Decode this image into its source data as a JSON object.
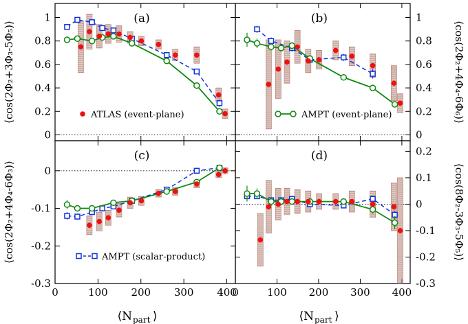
{
  "chart_data": [
    {
      "type": "scatter",
      "panel_label": "(a)",
      "ylabel": "⟨cos(2Φ₂+3Φ₃-5Φ₅)⟩",
      "xlabel": "⟨N_part⟩",
      "xlim": [
        0,
        420
      ],
      "ylim": [
        -0.05,
        1.12
      ],
      "yticks": [
        0,
        0.2,
        0.4,
        0.6,
        0.8,
        1
      ],
      "ytick_labels": [
        "0",
        "0.2",
        "0.4",
        "0.6",
        "0.8",
        "1"
      ],
      "legend": {
        "entry": "ATLAS (event-plane)",
        "marker": "filled-circle",
        "color": "#ee1111"
      },
      "series": [
        {
          "name": "ATLAS (event-plane)",
          "style": "atlas",
          "color": "#ee1111",
          "x": [
            60,
            80,
            103,
            124,
            149,
            175,
            201,
            241,
            280,
            330,
            381,
            396
          ],
          "y": [
            0.75,
            0.88,
            0.84,
            0.86,
            0.86,
            0.83,
            0.8,
            0.77,
            0.68,
            0.68,
            0.34,
            0.18
          ],
          "err": [
            0.22,
            0.15,
            0.1,
            0.08,
            0.07,
            0.05,
            0.04,
            0.04,
            0.05,
            0.07,
            0.06,
            0.04
          ]
        },
        {
          "name": "AMPT (scalar-product)",
          "style": "amptsp",
          "color": "#1133dd",
          "x": [
            28,
            52,
            86,
            110,
            136,
            179,
            260,
            330,
            383
          ],
          "y": [
            0.92,
            0.98,
            0.96,
            0.91,
            0.89,
            0.82,
            0.68,
            0.54,
            0.27
          ],
          "err": [
            0.02,
            0.02,
            0.02,
            0.02,
            0.02,
            0.02,
            0.02,
            0.02,
            0.03
          ]
        },
        {
          "name": "AMPT (event-plane)",
          "style": "amptep",
          "color": "#118811",
          "x": [
            28,
            52,
            86,
            110,
            136,
            179,
            260,
            330,
            383
          ],
          "y": [
            0.81,
            0.82,
            0.8,
            0.83,
            0.84,
            0.78,
            0.63,
            0.42,
            0.2
          ],
          "err": [
            0.02,
            0.02,
            0.02,
            0.02,
            0.02,
            0.02,
            0.02,
            0.02,
            0.02
          ]
        }
      ]
    },
    {
      "type": "scatter",
      "panel_label": "(b)",
      "ylabel": "⟨cos(2Φ₂+4Φ₄-6Φ₆)⟩",
      "xlabel": "⟨N_part⟩",
      "xlim": [
        0,
        420
      ],
      "ylim": [
        -0.05,
        1.12
      ],
      "yticks": [
        0,
        0.2,
        0.4,
        0.6,
        0.8,
        1
      ],
      "ytick_labels": [
        "0",
        "0.2",
        "0.4",
        "0.6",
        "0.8",
        "1"
      ],
      "legend": {
        "entry": "AMPT (event-plane)",
        "marker": "open-circle-line",
        "color": "#118811"
      },
      "series": [
        {
          "name": "ATLAS (event-plane)",
          "style": "atlas",
          "color": "#ee1111",
          "x": [
            80,
            103,
            124,
            149,
            175,
            201,
            241,
            280,
            330,
            381,
            396
          ],
          "y": [
            0.43,
            0.56,
            0.62,
            0.75,
            0.63,
            0.64,
            0.72,
            0.67,
            0.59,
            0.44,
            0.27
          ],
          "err": [
            0.38,
            0.25,
            0.18,
            0.14,
            0.1,
            0.08,
            0.08,
            0.08,
            0.1,
            0.15,
            0.08
          ]
        },
        {
          "name": "AMPT (scalar-product)",
          "style": "amptsp",
          "color": "#1133dd",
          "x": [
            52,
            86,
            136,
            179,
            260,
            330
          ],
          "y": [
            0.9,
            0.8,
            0.74,
            0.64,
            0.66,
            0.52
          ],
          "err": [
            0.03,
            0.03,
            0.03,
            0.03,
            0.03,
            0.04
          ]
        },
        {
          "name": "AMPT (event-plane)",
          "style": "amptep",
          "color": "#118811",
          "x": [
            28,
            52,
            86,
            110,
            136,
            179,
            260,
            330,
            383
          ],
          "y": [
            0.81,
            0.78,
            0.75,
            0.74,
            0.76,
            0.65,
            0.49,
            0.4,
            0.26
          ],
          "err": [
            0.06,
            0.04,
            0.03,
            0.03,
            0.03,
            0.02,
            0.02,
            0.02,
            0.02
          ]
        }
      ]
    },
    {
      "type": "scatter",
      "panel_label": "(c)",
      "ylabel": "⟨cos(2Φ₂+4Φ₄-6Φ₃)⟩",
      "xlabel": "⟨N_part⟩",
      "xlim": [
        0,
        420
      ],
      "ylim": [
        -0.3,
        0.08
      ],
      "yticks": [
        -0.3,
        -0.2,
        -0.1,
        0
      ],
      "ytick_labels": [
        "-0.3",
        "-0.2",
        "-0.1",
        "0"
      ],
      "legend": {
        "entry": "AMPT (scalar-product)",
        "marker": "open-square-dash",
        "color": "#1133dd"
      },
      "series": [
        {
          "name": "ATLAS (event-plane)",
          "style": "atlas",
          "color": "#ee1111",
          "x": [
            80,
            103,
            124,
            149,
            175,
            201,
            241,
            280,
            330,
            381,
            396
          ],
          "y": [
            -0.145,
            -0.135,
            -0.125,
            -0.105,
            -0.085,
            -0.08,
            -0.06,
            -0.055,
            -0.035,
            -0.01,
            0
          ],
          "err": [
            0.025,
            0.025,
            0.02,
            0.018,
            0.015,
            0.012,
            0.01,
            0.01,
            0.01,
            0.008,
            0.008
          ]
        },
        {
          "name": "AMPT (scalar-product)",
          "style": "amptsp",
          "color": "#1133dd",
          "x": [
            28,
            52,
            86,
            110,
            136,
            179,
            260,
            330,
            383
          ],
          "y": [
            -0.12,
            -0.122,
            -0.11,
            -0.1,
            -0.095,
            -0.08,
            -0.05,
            0,
            0.008
          ],
          "err": [
            0.01,
            0.008,
            0.008,
            0.008,
            0.007,
            0.006,
            0.006,
            0.006,
            0.006
          ]
        },
        {
          "name": "AMPT (event-plane)",
          "style": "amptep",
          "color": "#118811",
          "x": [
            28,
            52,
            86,
            136,
            179,
            260,
            330,
            383
          ],
          "y": [
            -0.09,
            -0.1,
            -0.1,
            -0.085,
            -0.08,
            -0.055,
            -0.03,
            0.008
          ],
          "err": [
            0.012,
            0.008,
            0.007,
            0.006,
            0.006,
            0.006,
            0.006,
            0.008
          ]
        }
      ]
    },
    {
      "type": "scatter",
      "panel_label": "(d)",
      "ylabel": "⟨cos(8Φ₂-3Φ₃-5Φ₅)⟩",
      "xlabel": "⟨N_part⟩",
      "xlim": [
        0,
        420
      ],
      "ylim": [
        -0.3,
        0.24
      ],
      "yticks": [
        -0.3,
        -0.2,
        -0.1,
        0,
        0.1,
        0.2
      ],
      "ytick_labels": [
        "-0.3",
        "-0.2",
        "-0.1",
        "0",
        "0.1",
        "0.2"
      ],
      "series": [
        {
          "name": "ATLAS (event-plane)",
          "style": "atlas",
          "color": "#ee1111",
          "x": [
            60,
            80,
            103,
            124,
            149,
            175,
            201,
            241,
            280,
            330,
            381,
            396
          ],
          "y": [
            -0.135,
            -0.01,
            0,
            0.01,
            0.01,
            0.01,
            0.01,
            0.01,
            0.01,
            0,
            -0.01,
            -0.1
          ],
          "err": [
            0.1,
            0.1,
            0.06,
            0.05,
            0.045,
            0.04,
            0.03,
            0.03,
            0.04,
            0.05,
            0.09,
            0.2
          ]
        },
        {
          "name": "AMPT (scalar-product)",
          "style": "amptsp",
          "color": "#1133dd",
          "x": [
            28,
            52,
            86,
            110,
            136,
            179,
            260,
            330,
            383
          ],
          "y": [
            0.03,
            0.03,
            0.015,
            0.015,
            0.02,
            0.0,
            -0.005,
            0.02,
            -0.04
          ],
          "err": [
            0.01,
            0.01,
            0.01,
            0.01,
            0.01,
            0.01,
            0.01,
            0.012,
            0.015
          ]
        },
        {
          "name": "AMPT (event-plane)",
          "style": "amptep",
          "color": "#118811",
          "x": [
            28,
            52,
            86,
            110,
            136,
            179,
            260,
            330,
            383
          ],
          "y": [
            0.04,
            0.04,
            0.01,
            0.01,
            0.01,
            0.01,
            0.01,
            -0.02,
            -0.07
          ],
          "err": [
            0.03,
            0.02,
            0.015,
            0.012,
            0.012,
            0.01,
            0.01,
            0.015,
            0.025
          ]
        }
      ]
    }
  ],
  "axes": {
    "x_ticks": [
      0,
      100,
      200,
      300,
      400
    ],
    "x_tick_labels": [
      "0",
      "100",
      "200",
      "300",
      "400"
    ],
    "xlabel_main": "⟨N",
    "xlabel_sub": "part",
    "xlabel_close": "⟩"
  },
  "colors": {
    "atlas": "#ee1111",
    "ampt_sp": "#1133dd",
    "ampt_ep": "#118811",
    "band": "#a87060"
  }
}
